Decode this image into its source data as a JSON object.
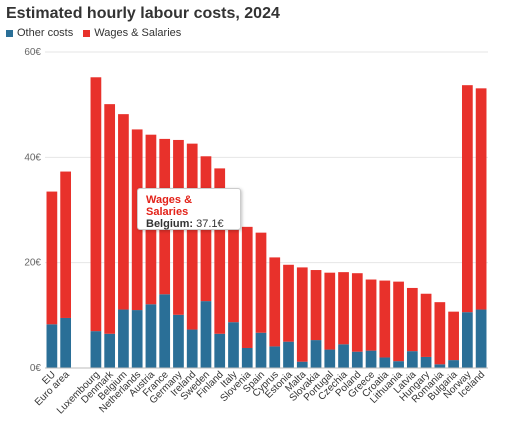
{
  "title": "Estimated hourly labour costs, 2024",
  "legend": {
    "other_label": "Other costs",
    "wages_label": "Wages & Salaries"
  },
  "colors": {
    "other": "#2a6f97",
    "wages": "#e8312b",
    "grid": "#e6e6e6",
    "axis": "#bbbbbb"
  },
  "tooltip": {
    "title": "Wages & Salaries",
    "country": "Belgium:",
    "value": "37.1€"
  },
  "chart_data": {
    "type": "bar",
    "stacked": true,
    "ylim": [
      0,
      60
    ],
    "yticks": [
      0,
      20,
      40,
      60
    ],
    "ytick_labels": [
      "0€",
      "20€",
      "40€",
      "60€"
    ],
    "grid": true,
    "legend_position": "top-left",
    "categories": [
      "EU",
      "Euro area",
      "Luxembourg",
      "Denmark",
      "Belgium",
      "Netherlands",
      "Austria",
      "France",
      "Germany",
      "Ireland",
      "Sweden",
      "Finland",
      "Italy",
      "Slovenia",
      "Spain",
      "Cyprus",
      "Estonia",
      "Malta",
      "Slovakia",
      "Portugal",
      "Czechia",
      "Poland",
      "Greece",
      "Croatia",
      "Lithuania",
      "Latvia",
      "Hungary",
      "Romania",
      "Bulgaria",
      "Norway",
      "Iceland"
    ],
    "gap_after_index": 1,
    "series": [
      {
        "name": "Other costs",
        "values": [
          8.3,
          9.5,
          7.0,
          6.5,
          11.1,
          11.0,
          12.1,
          14.0,
          10.1,
          7.3,
          12.7,
          6.5,
          8.7,
          3.8,
          6.7,
          4.1,
          5.0,
          1.2,
          5.3,
          3.5,
          4.5,
          3.1,
          3.3,
          2.0,
          1.3,
          3.2,
          2.1,
          0.7,
          1.5,
          10.6,
          11.1
        ]
      },
      {
        "name": "Wages & Salaries",
        "values": [
          25.2,
          27.8,
          48.2,
          43.6,
          37.1,
          34.3,
          32.2,
          29.5,
          33.2,
          35.3,
          27.5,
          31.4,
          20.2,
          23.0,
          19.0,
          16.9,
          14.6,
          17.9,
          13.3,
          14.6,
          13.7,
          14.9,
          13.5,
          14.6,
          15.1,
          12.0,
          12.0,
          11.8,
          9.2,
          43.1,
          42.0
        ]
      }
    ]
  }
}
